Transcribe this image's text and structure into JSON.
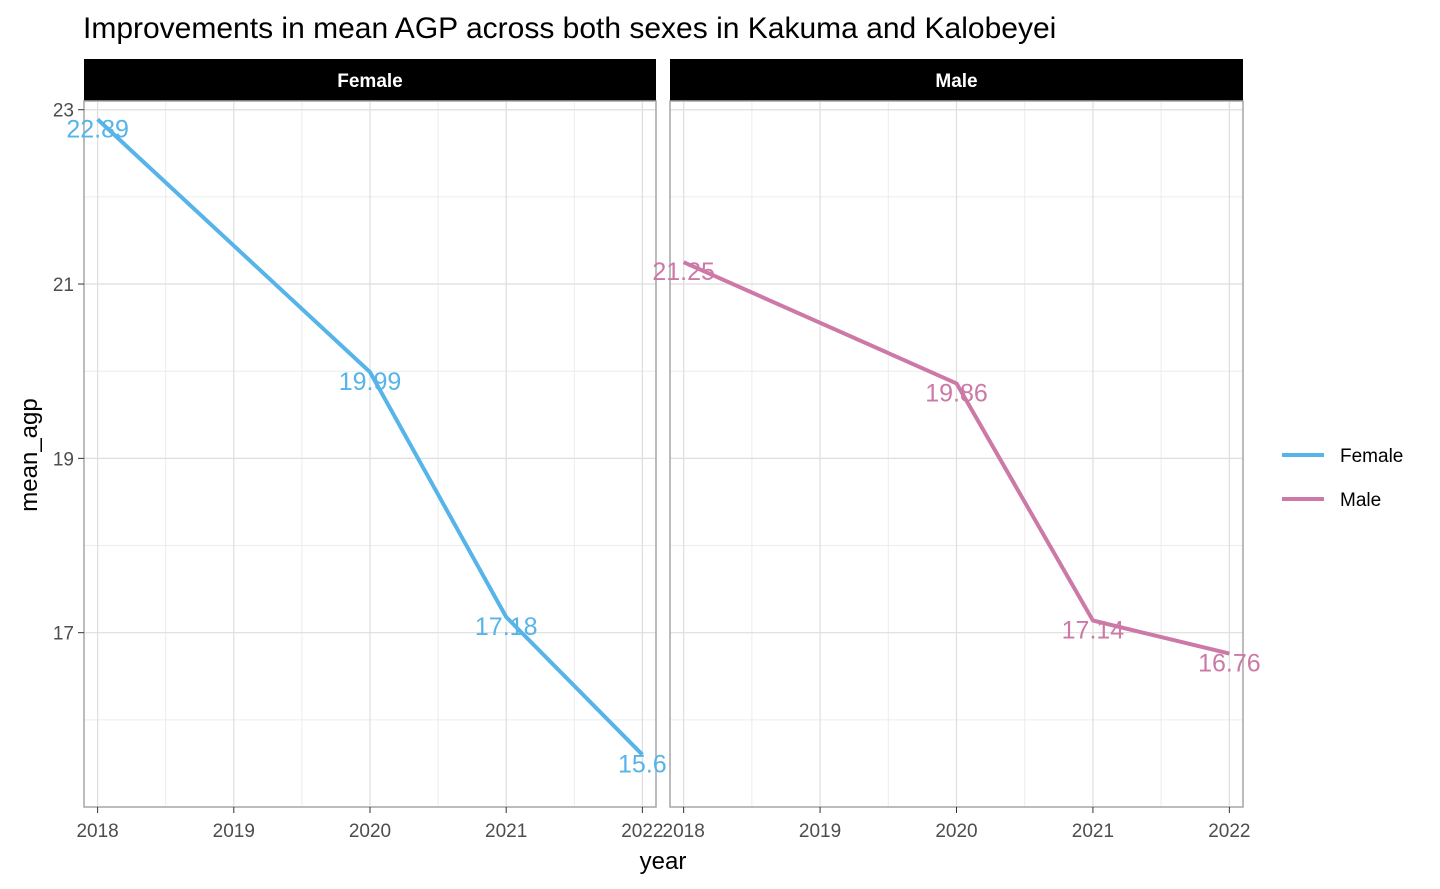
{
  "chart_data": {
    "type": "line",
    "title": "Improvements in mean AGP across both sexes in Kakuma and Kalobeyei",
    "xlabel": "year",
    "ylabel": "mean_agp",
    "x_ticks": [
      "2018",
      "2019",
      "2020",
      "2021",
      "2022"
    ],
    "y_ticks": [
      "17",
      "19",
      "21",
      "23"
    ],
    "xlim": [
      2017.9,
      2022.1
    ],
    "ylim": [
      15.0,
      23.1
    ],
    "grid": true,
    "legend_position": "right",
    "panels": [
      {
        "name": "Female",
        "color": "#56B4E9",
        "x": [
          2018,
          2020,
          2021,
          2022
        ],
        "y": [
          22.89,
          19.99,
          17.18,
          15.6
        ],
        "labels": [
          "22.89",
          "19.99",
          "17.18",
          "15.6"
        ]
      },
      {
        "name": "Male",
        "color": "#CC79A7",
        "x": [
          2018,
          2020,
          2021,
          2022
        ],
        "y": [
          21.25,
          19.86,
          17.14,
          16.76
        ],
        "labels": [
          "21.25",
          "19.86",
          "17.14",
          "16.76"
        ]
      }
    ],
    "legend": [
      {
        "label": "Female",
        "color": "#56B4E9"
      },
      {
        "label": "Male",
        "color": "#CC79A7"
      }
    ]
  }
}
